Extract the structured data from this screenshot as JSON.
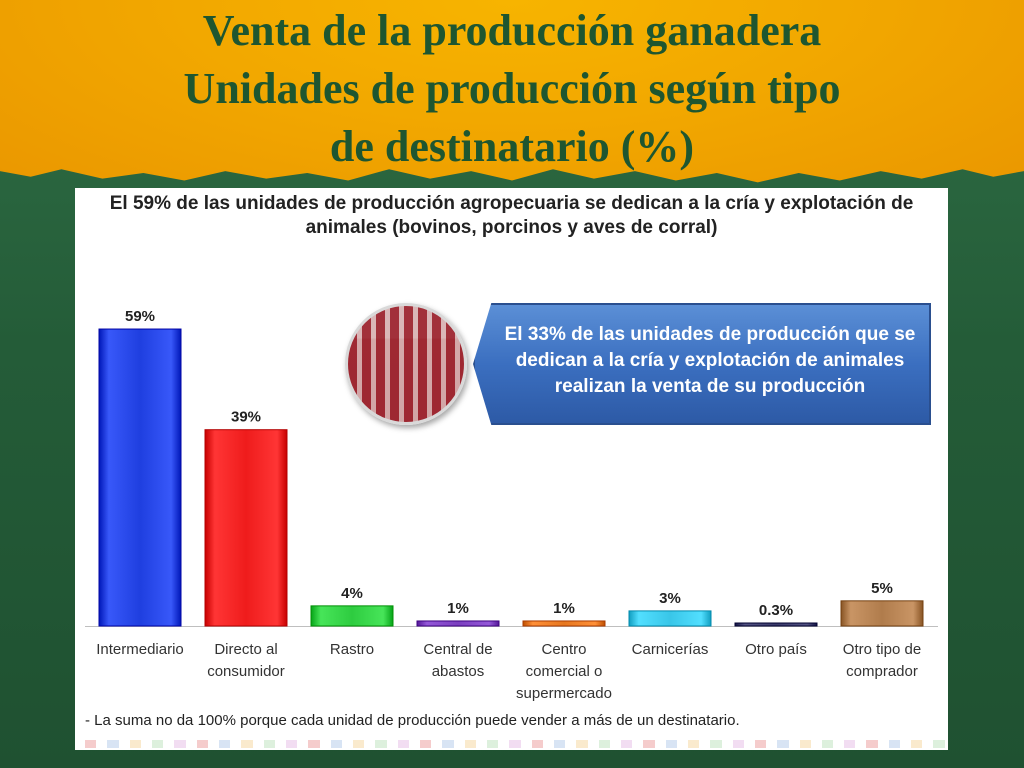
{
  "slide": {
    "title_lines": [
      "Venta de la producción ganadera",
      "Unidades de producción según tipo",
      "de destinatario (%)"
    ],
    "header_lines": [
      "El 59% de las unidades de producción agropecuaria se dedican a la cría y explotación de",
      "animales (bovinos, porcinos y aves de corral)"
    ],
    "callout_lines": [
      "El 33% de las unidades de producción que se",
      "dedican a la cría y explotación de animales",
      "realizan la venta de su producción"
    ],
    "footnote": "- La suma no da 100% porque cada unidad de producción puede vender a más de un destinatario."
  },
  "chart_data": {
    "type": "bar",
    "title": "",
    "xlabel": "",
    "ylabel": "",
    "ylim": [
      0,
      60
    ],
    "categories": [
      [
        "Intermediario"
      ],
      [
        "Directo al",
        "consumidor"
      ],
      [
        "Rastro"
      ],
      [
        "Central de",
        "abastos"
      ],
      [
        "Centro",
        "comercial o",
        "supermercado"
      ],
      [
        "Carnicerías"
      ],
      [
        "Otro país"
      ],
      [
        "Otro tipo de",
        "comprador"
      ]
    ],
    "values": [
      59,
      39,
      4,
      1,
      1,
      3,
      0.3,
      5
    ],
    "data_labels": [
      "59%",
      "39%",
      "4%",
      "1%",
      "1%",
      "3%",
      "0.3%",
      "5%"
    ],
    "colors": [
      "#1f3fe0",
      "#ef1c1c",
      "#2ecc40",
      "#7b3fbf",
      "#e6771f",
      "#39c6e8",
      "#3b3b6b",
      "#b07c4c"
    ]
  }
}
